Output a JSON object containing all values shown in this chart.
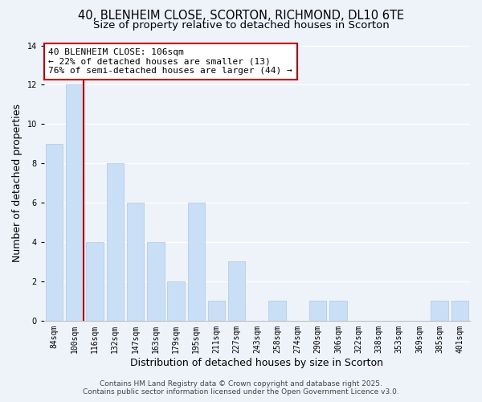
{
  "title_line1": "40, BLENHEIM CLOSE, SCORTON, RICHMOND, DL10 6TE",
  "title_line2": "Size of property relative to detached houses in Scorton",
  "xlabel": "Distribution of detached houses by size in Scorton",
  "ylabel": "Number of detached properties",
  "categories": [
    "84sqm",
    "100sqm",
    "116sqm",
    "132sqm",
    "147sqm",
    "163sqm",
    "179sqm",
    "195sqm",
    "211sqm",
    "227sqm",
    "243sqm",
    "258sqm",
    "274sqm",
    "290sqm",
    "306sqm",
    "322sqm",
    "338sqm",
    "353sqm",
    "369sqm",
    "385sqm",
    "401sqm"
  ],
  "values": [
    9,
    12,
    4,
    8,
    6,
    4,
    2,
    6,
    1,
    3,
    0,
    1,
    0,
    1,
    1,
    0,
    0,
    0,
    0,
    1,
    1
  ],
  "bar_color": "#c9dff5",
  "bar_edge_color": "#aac8e8",
  "vline_bar_index": 1,
  "vline_color": "#cc0000",
  "annotation_line1": "40 BLENHEIM CLOSE: 106sqm",
  "annotation_line2": "← 22% of detached houses are smaller (13)",
  "annotation_line3": "76% of semi-detached houses are larger (44) →",
  "annotation_box_facecolor": "#ffffff",
  "annotation_box_edgecolor": "#cc0000",
  "ylim": [
    0,
    14
  ],
  "yticks": [
    0,
    2,
    4,
    6,
    8,
    10,
    12,
    14
  ],
  "background_color": "#eef3fa",
  "grid_color": "#ffffff",
  "footer_line1": "Contains HM Land Registry data © Crown copyright and database right 2025.",
  "footer_line2": "Contains public sector information licensed under the Open Government Licence v3.0.",
  "title_fontsize": 10.5,
  "subtitle_fontsize": 9.5,
  "axis_label_fontsize": 9,
  "tick_fontsize": 7,
  "annotation_fontsize": 8,
  "footer_fontsize": 6.5,
  "bar_width": 0.85
}
